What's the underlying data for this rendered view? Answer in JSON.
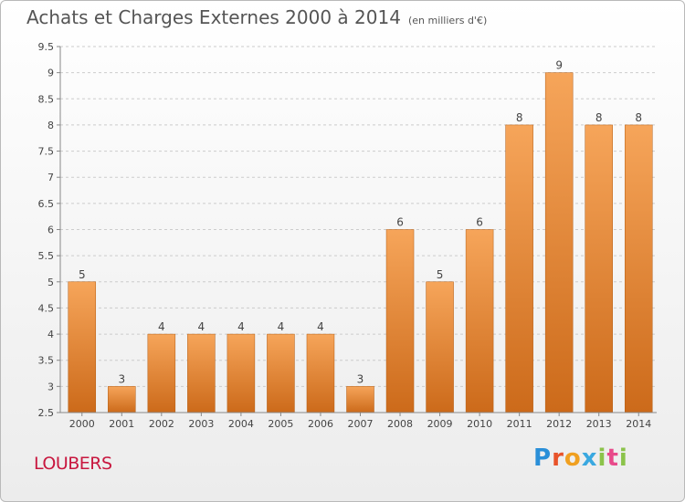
{
  "header": {
    "title": "Achats et Charges Externes 2000 à 2014",
    "unit": "(en milliers d'€)"
  },
  "footer": {
    "city": "LOUBERS",
    "brand": "Proxiti",
    "brand_colors": [
      "#2a8fd8",
      "#e8532a",
      "#f0a020",
      "#3aa8e0",
      "#8bc34a",
      "#e84a8a",
      "#8bc34a"
    ]
  },
  "colors": {
    "bar_top": "#f6a55a",
    "bar_bottom": "#cc6a1a",
    "grid": "#cccccc",
    "axis": "#888888"
  },
  "chart_data": {
    "type": "bar",
    "title": "Achats et Charges Externes 2000 à 2014",
    "xlabel": "",
    "ylabel": "",
    "categories": [
      "2000",
      "2001",
      "2002",
      "2003",
      "2004",
      "2005",
      "2006",
      "2007",
      "2008",
      "2009",
      "2010",
      "2011",
      "2012",
      "2013",
      "2014"
    ],
    "values": [
      5,
      3,
      4,
      4,
      4,
      4,
      4,
      3,
      6,
      5,
      6,
      8,
      9,
      8,
      8
    ],
    "ylim": [
      2.5,
      9.5
    ],
    "yticks": [
      "2.5",
      "3",
      "3.5",
      "4",
      "4.5",
      "5",
      "5.5",
      "6",
      "6.5",
      "7",
      "7.5",
      "8",
      "8.5",
      "9",
      "9.5"
    ],
    "grid": "horizontal-dashed"
  }
}
